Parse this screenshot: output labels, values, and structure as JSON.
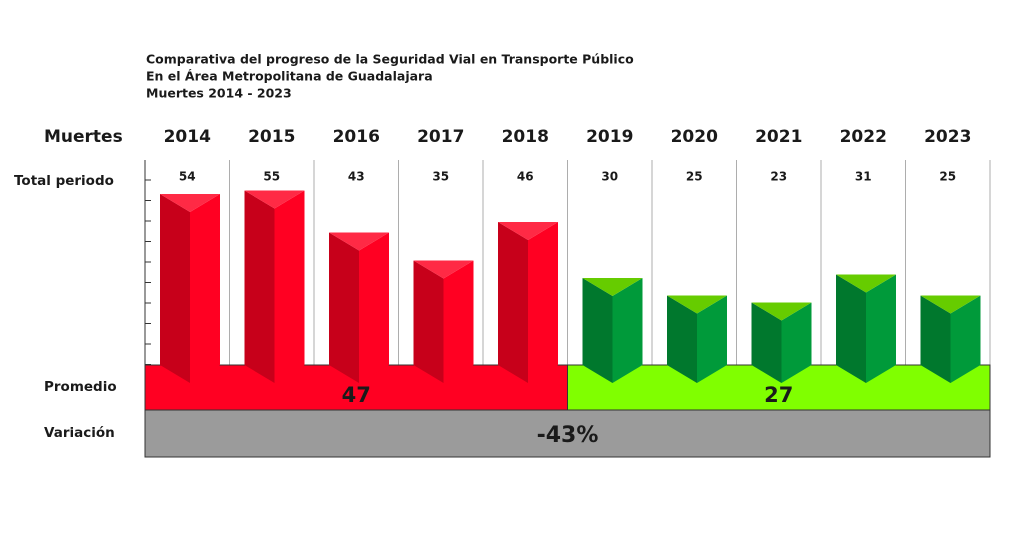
{
  "chart_data": {
    "type": "bar",
    "title": [
      "Comparativa del progreso de la Seguridad Vial en Transporte Público",
      "En el Área Metropolitana de Guadalajara",
      "Muertes  2014 - 2023"
    ],
    "row_labels": {
      "header": "Muertes",
      "values": "Total periodo",
      "averages": "Promedio",
      "variation": "Variación"
    },
    "categories": [
      "2014",
      "2015",
      "2016",
      "2017",
      "2018",
      "2019",
      "2020",
      "2021",
      "2022",
      "2023"
    ],
    "values": [
      54,
      55,
      43,
      35,
      46,
      30,
      25,
      23,
      31,
      25
    ],
    "colors": [
      "#ff0022",
      "#ff0022",
      "#ff0022",
      "#ff0022",
      "#ff0022",
      "#009a3a",
      "#009a3a",
      "#009a3a",
      "#009a3a",
      "#009a3a"
    ],
    "top_colors": [
      "#ff2a45",
      "#ff2a45",
      "#ff2a45",
      "#ff2a45",
      "#ff2a45",
      "#66cc00",
      "#66cc00",
      "#66cc00",
      "#66cc00",
      "#66cc00"
    ],
    "averages": [
      47,
      27
    ],
    "average_colors": [
      "#ff0022",
      "#80ff00"
    ],
    "average_label_colors": [
      "#ffffff",
      "#1a1a1a"
    ],
    "variation": {
      "value": -43,
      "label": "-43%"
    },
    "variation_color": "#9b9b9b"
  }
}
